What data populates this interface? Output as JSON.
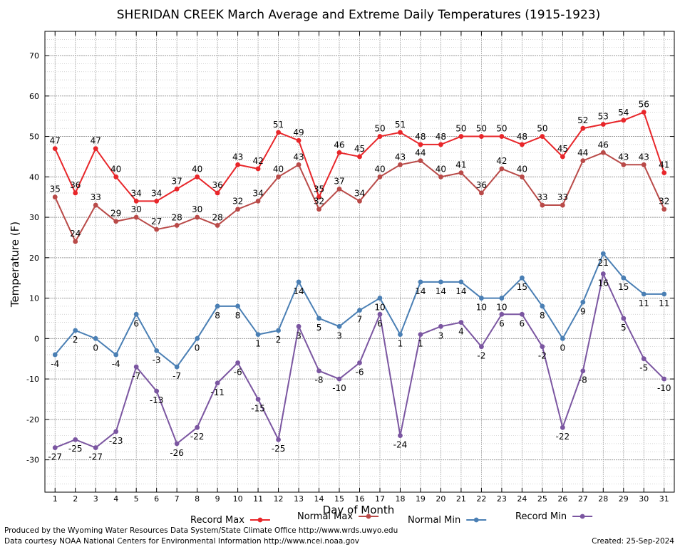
{
  "chart_data": {
    "type": "line",
    "title": "SHERIDAN CREEK March Average and Extreme Daily Temperatures (1915-1923)",
    "xlabel": "Day of Month",
    "ylabel": "Temperature (F)",
    "ylim": [
      -38,
      76
    ],
    "yticks": [
      -30,
      -20,
      -10,
      0,
      10,
      20,
      30,
      40,
      50,
      60,
      70
    ],
    "grid": true,
    "legend_position": "bottom",
    "x": [
      1,
      2,
      3,
      4,
      5,
      6,
      7,
      8,
      9,
      10,
      11,
      12,
      13,
      14,
      15,
      16,
      17,
      18,
      19,
      20,
      21,
      22,
      23,
      24,
      25,
      26,
      27,
      28,
      29,
      30,
      31
    ],
    "series": [
      {
        "name": "Record Max",
        "color": "#e8262a",
        "label_pos": "above",
        "values": [
          47,
          36,
          47,
          40,
          34,
          34,
          37,
          40,
          36,
          43,
          42,
          51,
          49,
          35,
          46,
          45,
          50,
          51,
          48,
          48,
          50,
          50,
          50,
          48,
          50,
          45,
          52,
          53,
          54,
          56,
          41
        ]
      },
      {
        "name": "Normal Max",
        "color": "#b94a48",
        "label_pos": "above",
        "values": [
          35,
          24,
          33,
          29,
          30,
          27,
          28,
          30,
          28,
          32,
          34,
          40,
          43,
          32,
          37,
          34,
          40,
          43,
          44,
          40,
          41,
          36,
          42,
          40,
          33,
          33,
          44,
          46,
          43,
          43,
          32
        ]
      },
      {
        "name": "Normal Min",
        "color": "#4a7fb4",
        "label_pos": "below",
        "values": [
          -4,
          2,
          0,
          -4,
          6,
          -3,
          -7,
          0,
          8,
          8,
          1,
          2,
          14,
          5,
          3,
          7,
          10,
          1,
          14,
          14,
          14,
          10,
          10,
          15,
          8,
          0,
          9,
          21,
          15,
          11,
          11
        ]
      },
      {
        "name": "Record Min",
        "color": "#7b56a1",
        "label_pos": "below",
        "values": [
          -27,
          -25,
          -27,
          -23,
          -7,
          -13,
          -26,
          -22,
          -11,
          -6,
          -15,
          -25,
          3,
          -8,
          -10,
          -6,
          6,
          -24,
          1,
          3,
          4,
          -2,
          6,
          6,
          -2,
          -22,
          -8,
          16,
          5,
          -5,
          -10
        ]
      }
    ]
  },
  "footer": {
    "line1": "Produced by the Wyoming Water Resources Data System/State Climate Office http://www.wrds.uwyo.edu",
    "line2": "Data courtesy NOAA National Centers for Environmental Information http://www.ncei.noaa.gov",
    "created": "Created:  25-Sep-2024"
  }
}
